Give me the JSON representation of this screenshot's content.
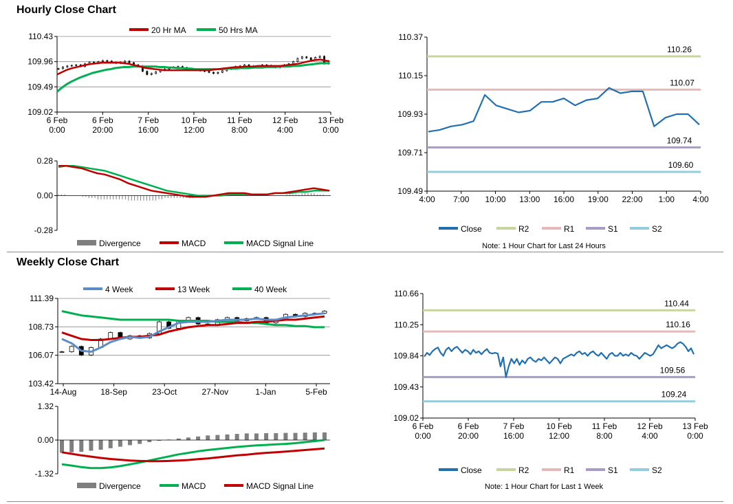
{
  "sections": {
    "hourly_title": "Hourly Close Chart",
    "weekly_title": "Weekly Close Chart"
  },
  "colors": {
    "close": "#1f6fb2",
    "r2": "#c3d69b",
    "r1": "#e6b9b8",
    "s1": "#a89bc4",
    "s2": "#93cddd",
    "ma20": "#c00000",
    "ma50": "#00b050",
    "w4": "#5b8cc8",
    "w13": "#c00000",
    "w40": "#00b050",
    "divergence": "#7f7f7f"
  },
  "chart_data": [
    {
      "id": "hourly_price",
      "type": "candlestick",
      "legend": [
        "20 Hr MA",
        "50 Hrs MA"
      ],
      "y_ticks": [
        "110.43",
        "109.96",
        "109.49",
        "109.02"
      ],
      "ylim": [
        109.02,
        110.43
      ],
      "x_ticks": [
        [
          "6 Feb",
          "0:00"
        ],
        [
          "6 Feb",
          "20:00"
        ],
        [
          "7 Feb",
          "16:00"
        ],
        [
          "10 Feb",
          "12:00"
        ],
        [
          "11 Feb",
          "8:00"
        ],
        [
          "12 Feb",
          "4:00"
        ],
        [
          "13 Feb",
          "0:00"
        ]
      ],
      "close": [
        109.83,
        109.86,
        109.88,
        109.89,
        109.9,
        109.87,
        109.92,
        109.95,
        109.93,
        109.96,
        109.98,
        109.97,
        109.95,
        109.93,
        109.95,
        109.97,
        109.94,
        109.9,
        109.88,
        109.78,
        109.72,
        109.74,
        109.77,
        109.8,
        109.82,
        109.85,
        109.86,
        109.87,
        109.85,
        109.83,
        109.82,
        109.8,
        109.79,
        109.78,
        109.76,
        109.74,
        109.76,
        109.79,
        109.82,
        109.85,
        109.87,
        109.88,
        109.9,
        109.88,
        109.86,
        109.88,
        109.9,
        109.89,
        109.87,
        109.85,
        109.88,
        109.9,
        109.92,
        109.96,
        110.02,
        110.05,
        110.03,
        110.0,
        110.04,
        110.06,
        109.92,
        109.94
      ],
      "ma20": [
        109.72,
        109.76,
        109.8,
        109.83,
        109.85,
        109.87,
        109.89,
        109.91,
        109.92,
        109.93,
        109.94,
        109.94,
        109.94,
        109.94,
        109.94,
        109.93,
        109.92,
        109.9,
        109.88,
        109.86,
        109.84,
        109.83,
        109.82,
        109.81,
        109.8,
        109.8,
        109.8,
        109.8,
        109.8,
        109.8,
        109.8,
        109.8,
        109.8,
        109.8,
        109.8,
        109.81,
        109.82,
        109.83,
        109.84,
        109.85,
        109.86,
        109.86,
        109.87,
        109.87,
        109.87,
        109.88,
        109.88,
        109.88,
        109.88,
        109.88,
        109.88,
        109.89,
        109.9,
        109.91,
        109.92,
        109.94,
        109.96,
        109.98,
        109.99,
        110.0,
        109.98,
        109.97
      ],
      "ma50": [
        109.4,
        109.47,
        109.53,
        109.58,
        109.62,
        109.66,
        109.69,
        109.72,
        109.75,
        109.77,
        109.79,
        109.81,
        109.82,
        109.84,
        109.85,
        109.86,
        109.86,
        109.87,
        109.87,
        109.87,
        109.87,
        109.87,
        109.87,
        109.86,
        109.86,
        109.85,
        109.85,
        109.84,
        109.84,
        109.83,
        109.83,
        109.82,
        109.82,
        109.82,
        109.82,
        109.82,
        109.82,
        109.82,
        109.83,
        109.83,
        109.83,
        109.84,
        109.84,
        109.84,
        109.85,
        109.85,
        109.85,
        109.86,
        109.86,
        109.86,
        109.87,
        109.87,
        109.87,
        109.88,
        109.88,
        109.89,
        109.9,
        109.91,
        109.92,
        109.93,
        109.93,
        109.93
      ]
    },
    {
      "id": "hourly_macd",
      "type": "line",
      "legend": [
        "Divergence",
        "MACD",
        "MACD Signal Line"
      ],
      "y_ticks": [
        "0.28",
        "0.00",
        "-0.28"
      ],
      "ylim": [
        -0.28,
        0.28
      ],
      "macd": [
        0.24,
        0.24,
        0.23,
        0.22,
        0.2,
        0.18,
        0.17,
        0.15,
        0.13,
        0.1,
        0.08,
        0.06,
        0.04,
        0.03,
        0.02,
        0.01,
        0.0,
        -0.01,
        -0.01,
        -0.01,
        0.0,
        0.01,
        0.02,
        0.02,
        0.02,
        0.01,
        0.01,
        0.01,
        0.02,
        0.02,
        0.03,
        0.04,
        0.05,
        0.06,
        0.05,
        0.04
      ],
      "signal": [
        0.23,
        0.24,
        0.24,
        0.23,
        0.22,
        0.21,
        0.2,
        0.18,
        0.16,
        0.14,
        0.12,
        0.1,
        0.08,
        0.06,
        0.04,
        0.03,
        0.02,
        0.01,
        0.0,
        0.0,
        0.0,
        0.0,
        0.01,
        0.01,
        0.01,
        0.01,
        0.01,
        0.01,
        0.02,
        0.02,
        0.02,
        0.03,
        0.03,
        0.04,
        0.04,
        0.04
      ],
      "divergence": [
        0.01,
        0.0,
        0.0,
        -0.01,
        -0.02,
        -0.03,
        -0.03,
        -0.03,
        -0.03,
        -0.04,
        -0.04,
        -0.04,
        -0.04,
        -0.03,
        -0.02,
        -0.02,
        -0.02,
        -0.02,
        -0.01,
        -0.01,
        0.0,
        0.01,
        0.01,
        0.01,
        0.01,
        0.0,
        0.0,
        0.0,
        0.0,
        0.0,
        0.01,
        0.01,
        0.02,
        0.02,
        0.01,
        0.0
      ]
    },
    {
      "id": "hourly_levels",
      "type": "line",
      "y_ticks": [
        "110.37",
        "110.15",
        "109.93",
        "109.71",
        "109.49"
      ],
      "ylim": [
        109.49,
        110.37
      ],
      "x_ticks": [
        "4:00",
        "7:00",
        "10:00",
        "13:00",
        "16:00",
        "19:00",
        "22:00",
        "1:00",
        "4:00"
      ],
      "close": [
        109.83,
        109.84,
        109.86,
        109.87,
        109.89,
        110.04,
        109.98,
        109.96,
        109.94,
        109.95,
        110.0,
        110.0,
        110.02,
        109.98,
        110.01,
        110.02,
        110.08,
        110.05,
        110.06,
        110.06,
        109.86,
        109.91,
        109.93,
        109.93,
        109.87
      ],
      "levels": {
        "R2": 110.26,
        "R1": 110.07,
        "S1": 109.74,
        "S2": 109.6
      },
      "level_labels": {
        "R2": "110.26",
        "R1": "110.07",
        "S1": "109.74",
        "S2": "109.60"
      },
      "legend": [
        "Close",
        "R2",
        "R1",
        "S1",
        "S2"
      ],
      "note": "Note: 1 Hour Chart for Last 24 Hours"
    },
    {
      "id": "weekly_price",
      "type": "candlestick",
      "legend": [
        "4 Week",
        "13 Week",
        "40 Week"
      ],
      "y_ticks": [
        "111.39",
        "108.73",
        "106.07",
        "103.42"
      ],
      "ylim": [
        103.42,
        111.39
      ],
      "x_ticks": [
        "14-Aug",
        "18-Sep",
        "23-Oct",
        "27-Nov",
        "1-Jan",
        "5-Feb"
      ],
      "close": [
        106.4,
        106.9,
        106.1,
        106.8,
        107.6,
        108.2,
        107.6,
        107.9,
        107.7,
        108.1,
        109.2,
        108.6,
        109.3,
        109.6,
        109.0,
        108.9,
        109.4,
        109.6,
        109.3,
        109.5,
        109.6,
        109.1,
        109.4,
        109.9,
        109.7,
        110.0,
        110.0,
        110.2
      ],
      "w4": [
        107.6,
        107.2,
        106.5,
        106.4,
        106.8,
        107.3,
        107.6,
        107.8,
        107.7,
        107.8,
        108.3,
        108.7,
        109.1,
        109.2,
        109.2,
        109.2,
        109.3,
        109.4,
        109.4,
        109.4,
        109.5,
        109.4,
        109.4,
        109.6,
        109.7,
        109.8,
        109.9,
        110.0
      ],
      "w13": [
        108.2,
        107.9,
        107.6,
        107.5,
        107.5,
        107.6,
        107.7,
        107.8,
        107.8,
        107.9,
        108.0,
        108.3,
        108.5,
        108.7,
        108.8,
        108.9,
        108.9,
        109.0,
        109.1,
        109.1,
        109.2,
        109.2,
        109.3,
        109.4,
        109.4,
        109.5,
        109.6,
        109.7
      ],
      "w40": [
        110.2,
        110.0,
        109.8,
        109.7,
        109.6,
        109.5,
        109.4,
        109.4,
        109.4,
        109.4,
        109.4,
        109.4,
        109.3,
        109.3,
        109.3,
        109.3,
        109.2,
        109.2,
        109.2,
        109.1,
        109.1,
        109.0,
        108.9,
        108.9,
        108.8,
        108.8,
        108.7,
        108.7
      ]
    },
    {
      "id": "weekly_macd",
      "type": "bar+line",
      "legend": [
        "Divergence",
        "MACD",
        "MACD Signal Line"
      ],
      "y_ticks": [
        "1.32",
        "0.00",
        "-1.32"
      ],
      "ylim": [
        -1.32,
        1.32
      ],
      "divergence": [
        -0.5,
        -0.48,
        -0.46,
        -0.42,
        -0.38,
        -0.32,
        -0.26,
        -0.2,
        -0.15,
        -0.08,
        -0.03,
        0.02,
        0.06,
        0.1,
        0.14,
        0.18,
        0.2,
        0.22,
        0.24,
        0.26,
        0.26,
        0.27,
        0.27,
        0.28,
        0.28,
        0.29,
        0.3,
        0.3
      ],
      "macd": [
        -0.95,
        -1.0,
        -1.06,
        -1.1,
        -1.1,
        -1.07,
        -1.02,
        -0.95,
        -0.88,
        -0.8,
        -0.72,
        -0.64,
        -0.56,
        -0.5,
        -0.44,
        -0.39,
        -0.35,
        -0.31,
        -0.27,
        -0.24,
        -0.21,
        -0.19,
        -0.17,
        -0.15,
        -0.12,
        -0.08,
        -0.04,
        0.0
      ],
      "signal": [
        -0.48,
        -0.54,
        -0.6,
        -0.65,
        -0.7,
        -0.74,
        -0.77,
        -0.8,
        -0.82,
        -0.83,
        -0.83,
        -0.82,
        -0.8,
        -0.78,
        -0.75,
        -0.72,
        -0.68,
        -0.64,
        -0.6,
        -0.57,
        -0.53,
        -0.5,
        -0.48,
        -0.45,
        -0.42,
        -0.39,
        -0.36,
        -0.33
      ]
    },
    {
      "id": "weekly_levels",
      "type": "line",
      "y_ticks": [
        "110.66",
        "110.25",
        "109.84",
        "109.43",
        "109.02"
      ],
      "ylim": [
        109.02,
        110.66
      ],
      "x_ticks": [
        [
          "6 Feb",
          "0:00"
        ],
        [
          "6 Feb",
          "20:00"
        ],
        [
          "7 Feb",
          "16:00"
        ],
        [
          "10 Feb",
          "12:00"
        ],
        [
          "11 Feb",
          "8:00"
        ],
        [
          "12 Feb",
          "4:00"
        ],
        [
          "13 Feb",
          "0:00"
        ]
      ],
      "close": [
        109.83,
        109.88,
        109.85,
        109.9,
        109.93,
        109.95,
        109.88,
        109.84,
        109.92,
        109.95,
        109.9,
        109.94,
        109.96,
        109.92,
        109.88,
        109.92,
        109.9,
        109.86,
        109.92,
        109.88,
        109.9,
        109.86,
        109.9,
        109.93,
        109.88,
        109.87,
        109.88,
        109.87,
        109.7,
        109.82,
        109.56,
        109.7,
        109.8,
        109.74,
        109.8,
        109.72,
        109.78,
        109.74,
        109.8,
        109.82,
        109.78,
        109.76,
        109.8,
        109.78,
        109.82,
        109.78,
        109.74,
        109.78,
        109.82,
        109.8,
        109.74,
        109.8,
        109.82,
        109.84,
        109.86,
        109.84,
        109.88,
        109.9,
        109.86,
        109.88,
        109.84,
        109.88,
        109.9,
        109.86,
        109.84,
        109.88,
        109.84,
        109.8,
        109.86,
        109.88,
        109.84,
        109.84,
        109.88,
        109.84,
        109.86,
        109.84,
        109.88,
        109.85,
        109.84,
        109.8,
        109.84,
        109.88,
        109.86,
        109.84,
        109.86,
        109.92,
        109.98,
        109.94,
        109.96,
        109.98,
        109.96,
        109.94,
        109.96,
        110.0,
        110.02,
        110.0,
        109.96,
        109.9,
        109.94,
        109.86
      ],
      "levels": {
        "R2": 110.44,
        "R1": 110.16,
        "S1": 109.56,
        "S2": 109.24
      },
      "level_labels": {
        "R2": "110.44",
        "R1": "110.16",
        "S1": "109.56",
        "S2": "109.24"
      },
      "legend": [
        "Close",
        "R2",
        "R1",
        "S1",
        "S2"
      ],
      "note": "Note: 1 Hour Chart for Last 1 Week"
    }
  ]
}
